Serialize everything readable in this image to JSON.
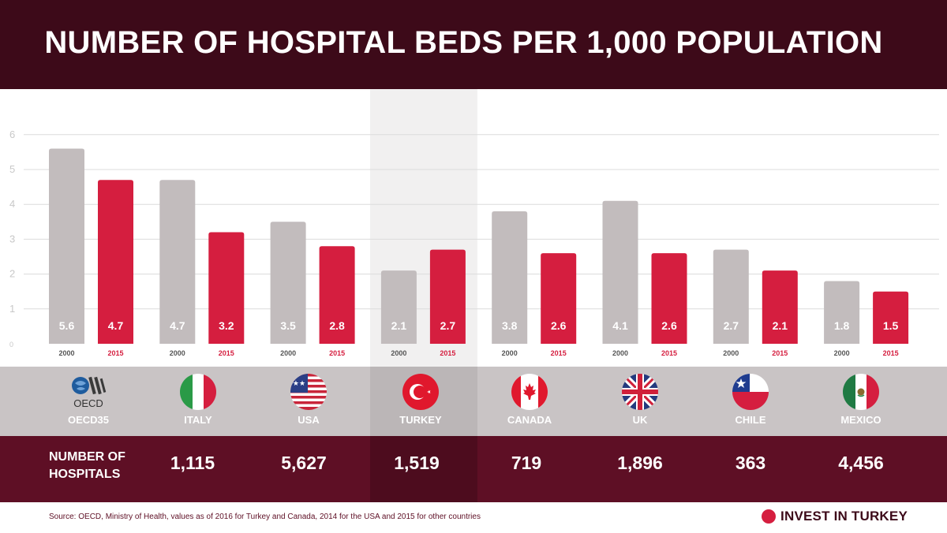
{
  "chart_data": {
    "type": "bar",
    "title": "NUMBER OF HOSPITAL BEDS PER 1,000 POPULATION",
    "categories": [
      "OECD35",
      "ITALY",
      "USA",
      "TURKEY",
      "CANADA",
      "UK",
      "CHILE",
      "MEXICO"
    ],
    "series": [
      {
        "name": "2000",
        "color": "#c2bcbd",
        "values": [
          5.6,
          4.7,
          3.5,
          2.1,
          3.8,
          4.1,
          2.7,
          1.8
        ]
      },
      {
        "name": "2015",
        "color": "#d51e3f",
        "values": [
          4.7,
          3.2,
          2.8,
          2.7,
          2.6,
          2.6,
          2.1,
          1.5
        ]
      }
    ],
    "value_labels": [
      [
        "5.6",
        "4.7",
        "3.5",
        "2.1",
        "3.8",
        "4.1",
        "2.7",
        "1.8"
      ],
      [
        "4.7",
        "3.2",
        "2.8",
        "2.7",
        "2.6",
        "2.6",
        "2.1",
        "1.5"
      ]
    ],
    "yticks": [
      "0",
      "1",
      "2",
      "3",
      "4",
      "5",
      "6"
    ],
    "ylim": [
      0,
      6
    ],
    "grid": true,
    "highlight": "TURKEY"
  },
  "countries": [
    {
      "name": "OECD35",
      "flag": "oecd-logo-icon"
    },
    {
      "name": "ITALY",
      "flag": "italy-flag-icon"
    },
    {
      "name": "USA",
      "flag": "usa-flag-icon"
    },
    {
      "name": "TURKEY",
      "flag": "turkey-flag-icon"
    },
    {
      "name": "CANADA",
      "flag": "canada-flag-icon"
    },
    {
      "name": "UK",
      "flag": "uk-flag-icon"
    },
    {
      "name": "CHILE",
      "flag": "chile-flag-icon"
    },
    {
      "name": "MEXICO",
      "flag": "mexico-flag-icon"
    }
  ],
  "oecd_logo_text": "OECD",
  "hospitals": {
    "label_line1": "NUMBER OF",
    "label_line2": "HOSPITALS",
    "values": [
      "1,115",
      "5,627",
      "1,519",
      "719",
      "1,896",
      "363",
      "4,456"
    ]
  },
  "footer": {
    "source": "Source: OECD, Ministry of Health, values as of 2016 for Turkey and Canada, 2014 for the USA and 2015 for other countries",
    "brand": "INVEST IN TURKEY"
  },
  "colors": {
    "title_bg": "#3d0a19",
    "band_bg": "#c9c4c5",
    "hospitals_bg": "#5e0f25",
    "bar_2000": "#c2bcbd",
    "bar_2015": "#d51e3f"
  }
}
